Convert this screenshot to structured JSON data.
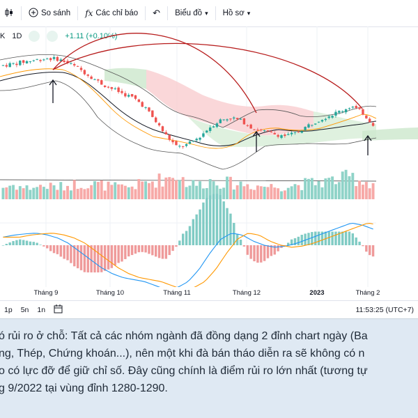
{
  "toolbar": {
    "items": [
      {
        "icon": "candlestick-icon",
        "label": ""
      },
      {
        "icon": "compare-plus-icon",
        "label": "So sánh"
      },
      {
        "icon": "fx-indicator-icon",
        "label": "Các chỉ báo"
      },
      {
        "icon": "undo-icon",
        "label": ""
      },
      {
        "label": "Biểu đồ",
        "icon": "chevron-down-icon"
      },
      {
        "label": "Hồ sơ",
        "icon": "chevron-down-icon"
      }
    ]
  },
  "symbol": {
    "suffix": "K",
    "interval": "1D",
    "change": "+1.11 (+0.10%)"
  },
  "time_axis": {
    "ticks": [
      "Tháng 9",
      "Tháng 10",
      "Tháng 11",
      "Tháng 12",
      "2023",
      "Tháng 2"
    ]
  },
  "bottom_bar": {
    "timeframes": [
      "1p",
      "5n",
      "1n"
    ],
    "clock": "11:53:25 (UTC+7)"
  },
  "article": {
    "lines": [
      "ó rủi ro ở chỗ: Tất cả các nhóm ngành đã đồng dạng 2 đỉnh chart ngày (Ba",
      "ng, Thép, Chứng khoán...), nên một khi đà bán tháo diễn ra sẽ không có n",
      "o có lực đỡ để giữ chỉ số. Đây cũng chính là điểm rủi ro lớn nhất (tương tự",
      "g 9/2022 tại vùng đỉnh 1280-1290."
    ]
  },
  "colors": {
    "up": "#26a69a",
    "down": "#ef5350",
    "arc": "#b71c1c",
    "macd": "#2196f3",
    "signal": "#ff9800",
    "cloud_bull": "#c8e6c9",
    "cloud_bear": "#ffcdd2"
  },
  "chart_data": {
    "type": "candlestick",
    "series": [
      {
        "name": "price_trend",
        "values": [
          1262,
          1268,
          1275,
          1281,
          1286,
          1284,
          1270,
          1250,
          1225,
          1200,
          1182,
          1165,
          1150,
          1120,
          1070,
          1020,
          980,
          990,
          1015,
          1050,
          1075,
          1082,
          1070,
          1045,
          1035,
          1025,
          1020,
          1030,
          1055,
          1075,
          1090,
          1105,
          1122,
          1100,
          1060
        ]
      },
      {
        "name": "volume_trend",
        "values": [
          0.45,
          0.55,
          0.42,
          0.48,
          0.5,
          0.46,
          0.52,
          0.6,
          0.58,
          0.55,
          0.48,
          0.44,
          0.5,
          0.62,
          0.7,
          0.8,
          0.95,
          0.6,
          0.55,
          0.7,
          0.66,
          0.6,
          0.58,
          0.52,
          0.5,
          0.48,
          0.5,
          0.55,
          0.6,
          0.65,
          0.7,
          0.75,
          0.85,
          0.7,
          0.6
        ]
      },
      {
        "name": "macd_trend",
        "values": [
          0.2,
          0.25,
          0.28,
          0.3,
          0.26,
          0.18,
          0.05,
          -0.15,
          -0.35,
          -0.55,
          -0.7,
          -0.8,
          -0.85,
          -0.9,
          -1.0,
          -1.1,
          -1.05,
          -0.9,
          -0.6,
          -0.2,
          0.15,
          0.3,
          0.25,
          0.1,
          0.0,
          -0.05,
          -0.02,
          0.05,
          0.15,
          0.25,
          0.35,
          0.45,
          0.55,
          0.5,
          0.4
        ]
      }
    ],
    "annotations": [
      "double-top arcs",
      "up arrows"
    ]
  }
}
